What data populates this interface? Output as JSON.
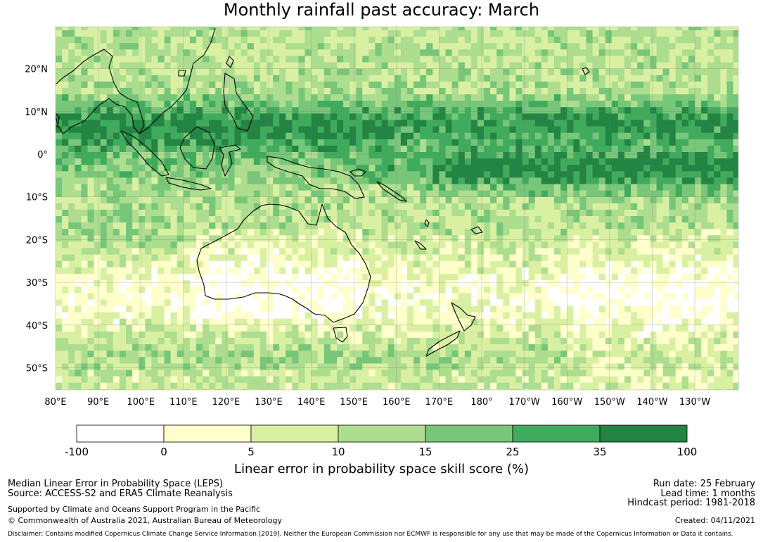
{
  "title": "Monthly rainfall past accuracy: March",
  "map": {
    "lat_labels": [
      "20°N",
      "10°N",
      "0°",
      "10°S",
      "20°S",
      "30°S",
      "40°S",
      "50°S"
    ],
    "lon_labels": [
      "80°E",
      "90°E",
      "100°E",
      "110°E",
      "120°E",
      "130°E",
      "140°E",
      "150°E",
      "160°E",
      "170°E",
      "180°",
      "170°W",
      "160°W",
      "150°W",
      "140°W",
      "130°W"
    ]
  },
  "colorbar": {
    "tick_labels": [
      "-100",
      "0",
      "5",
      "10",
      "15",
      "25",
      "35",
      "100"
    ],
    "colors": [
      "#ffffff",
      "#ffffcc",
      "#d9f0a3",
      "#addd8e",
      "#78c679",
      "#41ab5d",
      "#238443"
    ],
    "label": "Linear error in probability space skill score (%)"
  },
  "footer": {
    "metric": "Median Linear Error in Probability Space (LEPS)",
    "source": "Source: ACCESS-S2 and ERA5 Climate Reanalysis",
    "support": "Supported by Climate and Oceans Support Program in the Pacific",
    "copyright": "© Commonwealth of Australia 2021, Australian Bureau of Meteorology",
    "run_date": "Run date: 25 February",
    "lead_time": "Lead time: 1 months",
    "hindcast": "Hindcast period: 1981-2018",
    "created": "Created: 04/11/2021",
    "disclaimer": "Disclaimer: Contains modified Copernicus Climate Change Service Information [2019]. Neither the European Commission nor ECMWF is responsible for any use that may be made of the Copernicus Information or Data it contains."
  }
}
